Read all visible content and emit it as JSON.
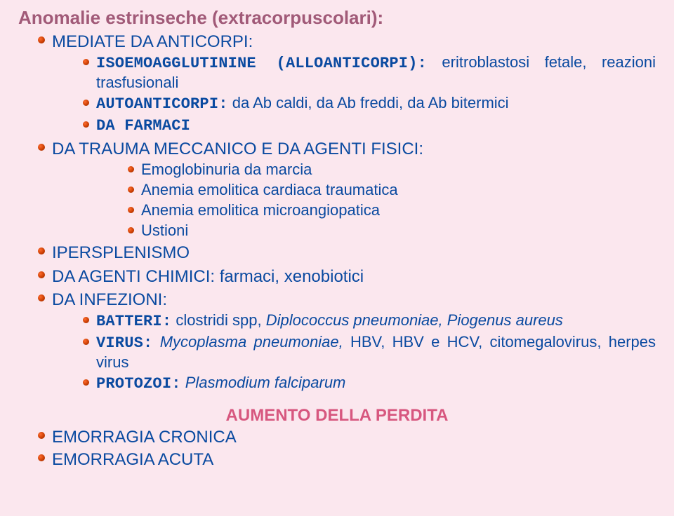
{
  "title": "Anomalie estrinseche (extracorpuscolari):",
  "sections": [
    {
      "text": "MEDIATE DA ANTICORPI:"
    },
    {
      "children": [
        {
          "mono_label": "ISOEMOAGGLUTININE (ALLOANTICORPI):",
          "rest": " eritroblastosi fetale, reazioni trasfusionali"
        },
        {
          "mono_label": "AUTOANTICORPI:",
          "rest": " da Ab caldi, da Ab freddi, da Ab bitermici"
        },
        {
          "mono_label": "DA FARMACI",
          "rest": ""
        }
      ]
    },
    {
      "text": "DA TRAUMA MECCANICO E DA AGENTI FISICI:"
    },
    {
      "children2": [
        {
          "text": "Emoglobinuria da marcia"
        },
        {
          "text": "Anemia emolitica cardiaca traumatica"
        },
        {
          "text": "Anemia emolitica microangiopatica"
        },
        {
          "text": "Ustioni"
        }
      ]
    },
    {
      "text": "IPERSPLENISMO"
    },
    {
      "label": "DA AGENTI CHIMICI: ",
      "rest_plain": "farmaci, xenobiotici"
    },
    {
      "text": "DA INFEZIONI:"
    },
    {
      "children3": [
        {
          "label": "BATTERI:",
          "rest1": " clostridi spp, ",
          "it": "Diplococcus pneumoniae, Piogenus aureus"
        },
        {
          "label": "VIRUS:",
          "it2": " Mycoplasma pneumoniae,",
          "rest2": " HBV, HBV e HCV, citomegalovirus, herpes virus"
        },
        {
          "label": "PROTOZOI:",
          "it3": " Plasmodium falciparum"
        }
      ]
    }
  ],
  "footer_head": "AUMENTO DELLA PERDITA",
  "footer_items": [
    "EMORRAGIA CRONICA",
    "EMORRAGIA ACUTA"
  ]
}
